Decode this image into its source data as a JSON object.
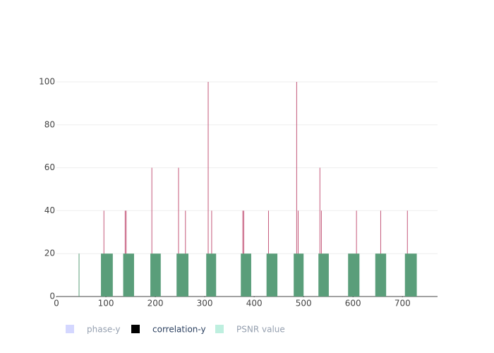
{
  "chart_data": {
    "type": "bar",
    "xlim": [
      0,
      771
    ],
    "ylim": [
      0,
      100
    ],
    "xticks": [
      0,
      100,
      200,
      300,
      400,
      500,
      600,
      700
    ],
    "yticks": [
      0,
      20,
      40,
      60,
      80,
      100
    ],
    "grid": true,
    "series": [
      {
        "name": "phase-y",
        "color": "#aab0ff",
        "opacity": 0.5,
        "x": [],
        "values": []
      },
      {
        "name": "correlation-y",
        "color": "#000000",
        "opacity": 1,
        "mark_color": "#c4587a",
        "x": [
          96,
          139,
          141,
          193,
          247,
          261,
          307,
          314,
          377,
          379,
          429,
          486,
          489,
          533,
          536,
          607,
          656,
          710
        ],
        "values": [
          40,
          40,
          40,
          60,
          60,
          40,
          100,
          40,
          40,
          40,
          40,
          100,
          40,
          60,
          40,
          40,
          40,
          40
        ]
      },
      {
        "name": "PSNR value",
        "color": "#7de0c0",
        "opacity": 0.5,
        "mark_color": "#5a9e7a",
        "x": [
          45,
          90,
          135,
          190,
          243,
          303,
          373,
          425,
          480,
          530,
          590,
          645,
          705
        ],
        "x_end": [
          46,
          114,
          157,
          211,
          267,
          323,
          394,
          447,
          500,
          551,
          613,
          667,
          729
        ],
        "values": [
          20,
          20,
          20,
          20,
          20,
          20,
          20,
          20,
          20,
          20,
          20,
          20,
          20
        ]
      }
    ]
  }
}
